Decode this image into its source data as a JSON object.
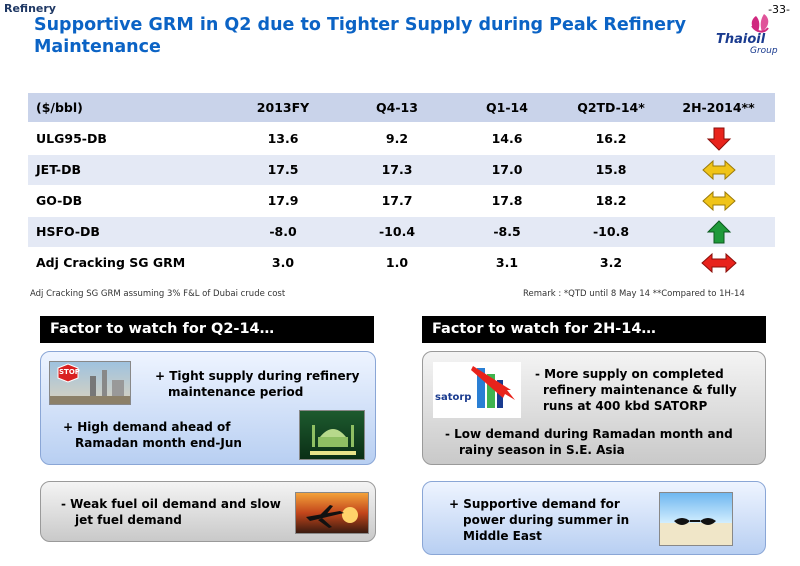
{
  "header": {
    "section": "Refinery",
    "page_number": "-33-",
    "title": "Supportive GRM in Q2 due to Tighter Supply during Peak Refinery Maintenance",
    "logo_text": "Thaioil",
    "logo_sub": "Group"
  },
  "table": {
    "columns": [
      "($/bbl)",
      "2013FY",
      "Q4-13",
      "Q1-14",
      "Q2TD-14*",
      "2H-2014**"
    ],
    "rows": [
      {
        "label": "ULG95-DB",
        "values": [
          "13.6",
          "9.2",
          "14.6",
          "16.2"
        ],
        "outlook": "down"
      },
      {
        "label": "JET-DB",
        "values": [
          "17.5",
          "17.3",
          "17.0",
          "15.8"
        ],
        "outlook": "sideways"
      },
      {
        "label": "GO-DB",
        "values": [
          "17.9",
          "17.7",
          "17.8",
          "18.2"
        ],
        "outlook": "sideways"
      },
      {
        "label": "HSFO-DB",
        "values": [
          "-8.0",
          "-10.4",
          "-8.5",
          "-10.8"
        ],
        "outlook": "up"
      },
      {
        "label": "Adj Cracking SG GRM",
        "values": [
          "3.0",
          "1.0",
          "3.1",
          "3.2"
        ],
        "outlook": "both"
      }
    ],
    "outlook_colors": {
      "down": "#e8231c",
      "sideways": "#f0c419",
      "up": "#1f9a3a",
      "both": "#e8231c"
    }
  },
  "footnote": "Adj Cracking SG GRM assuming 3% F&L of Dubai crude cost",
  "remark": "Remark : *QTD until 8 May 14 **Compared to 1H-14",
  "left_panel": {
    "header": "Factor to watch for Q2-14…",
    "box1": {
      "line1": "+ Tight supply during refinery",
      "line2": "maintenance period",
      "line3": "+ High demand ahead of",
      "line4": "Ramadan month end-Jun",
      "stop_sign": "STOP"
    },
    "box2": {
      "line1": "-  Weak fuel oil demand and slow",
      "line2": "jet fuel demand"
    }
  },
  "right_panel": {
    "header": "Factor to watch for 2H-14…",
    "box1": {
      "line1": "-  More supply on completed",
      "line2": "refinery maintenance & fully",
      "line3": "runs at 400 kbd SATORP",
      "line4": "-  Low demand during Ramadan month and",
      "line5": "rainy season in S.E. Asia",
      "satorp_label": "satorp"
    },
    "box2": {
      "line1": "+ Supportive demand for",
      "line2": "power during summer in",
      "line3": "Middle East"
    }
  }
}
